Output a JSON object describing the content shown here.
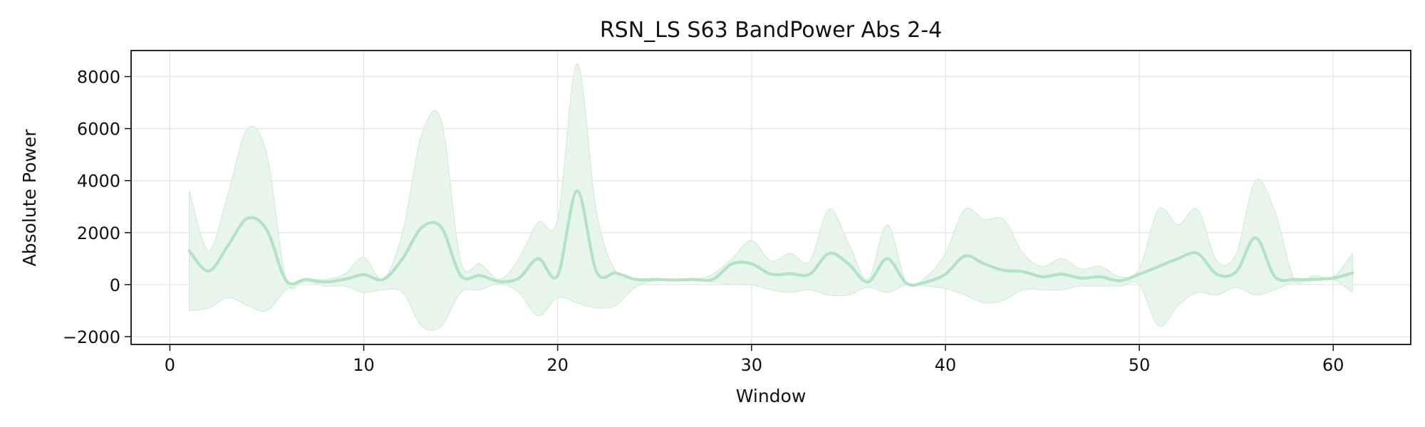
{
  "chart_data": {
    "type": "line",
    "title": "RSN_LS S63 BandPower Abs 2-4",
    "xlabel": "Window",
    "ylabel": "Absolute Power",
    "xlim": [
      -2,
      64
    ],
    "ylim": [
      -2300,
      9000
    ],
    "xticks": [
      0,
      10,
      20,
      30,
      40,
      50,
      60
    ],
    "yticks": [
      -2000,
      0,
      2000,
      4000,
      6000,
      8000
    ],
    "grid": true,
    "colors": {
      "line": "#b4e2c4",
      "band": "#e8f5ec",
      "band_edge": "#d2ecda"
    },
    "series": [
      {
        "x": [
          1,
          2,
          3,
          4,
          5,
          6,
          7,
          8,
          9,
          10,
          11,
          12,
          13,
          14,
          15,
          16,
          17,
          18,
          19,
          20,
          21,
          22,
          23,
          24,
          25,
          26,
          27,
          28,
          29,
          30,
          31,
          32,
          33,
          34,
          35,
          36,
          37,
          38,
          39,
          40,
          41,
          42,
          43,
          44,
          45,
          46,
          47,
          48,
          49,
          50,
          51,
          52,
          53,
          54,
          55,
          56,
          57,
          58,
          59,
          60,
          61
        ],
        "mean": [
          1300,
          520,
          1500,
          2550,
          2100,
          150,
          200,
          100,
          200,
          380,
          200,
          1000,
          2200,
          2200,
          350,
          350,
          120,
          250,
          1000,
          350,
          3600,
          500,
          450,
          200,
          200,
          180,
          200,
          200,
          800,
          800,
          400,
          420,
          400,
          1200,
          800,
          100,
          1000,
          50,
          100,
          400,
          1100,
          800,
          550,
          500,
          300,
          400,
          250,
          300,
          150,
          400,
          700,
          1000,
          1200,
          400,
          500,
          1800,
          300,
          200,
          200,
          250,
          450
        ],
        "upper": [
          3600,
          1300,
          3500,
          6000,
          5000,
          200,
          200,
          200,
          400,
          1050,
          200,
          2000,
          5800,
          6300,
          900,
          800,
          200,
          1000,
          2400,
          2500,
          8500,
          2800,
          500,
          250,
          200,
          200,
          200,
          400,
          1000,
          1700,
          900,
          1200,
          900,
          2900,
          1600,
          200,
          2300,
          50,
          300,
          1200,
          2900,
          2500,
          2500,
          1200,
          700,
          1000,
          600,
          700,
          300,
          600,
          2900,
          2300,
          2900,
          900,
          1200,
          4000,
          2800,
          200,
          350,
          300,
          1200
        ],
        "lower": [
          -1000,
          -900,
          -500,
          -800,
          -1000,
          -200,
          100,
          -50,
          -50,
          -300,
          -200,
          -300,
          -1600,
          -1600,
          -300,
          -200,
          50,
          -300,
          -1200,
          -500,
          -700,
          -900,
          -800,
          -100,
          150,
          150,
          150,
          100,
          0,
          0,
          -200,
          -300,
          -200,
          -400,
          -400,
          -100,
          -300,
          0,
          -50,
          -150,
          -400,
          -700,
          -600,
          -200,
          -200,
          -200,
          -50,
          -50,
          -50,
          0,
          -1600,
          -800,
          -300,
          -400,
          -100,
          -400,
          -200,
          100,
          200,
          200,
          -300
        ]
      }
    ]
  }
}
